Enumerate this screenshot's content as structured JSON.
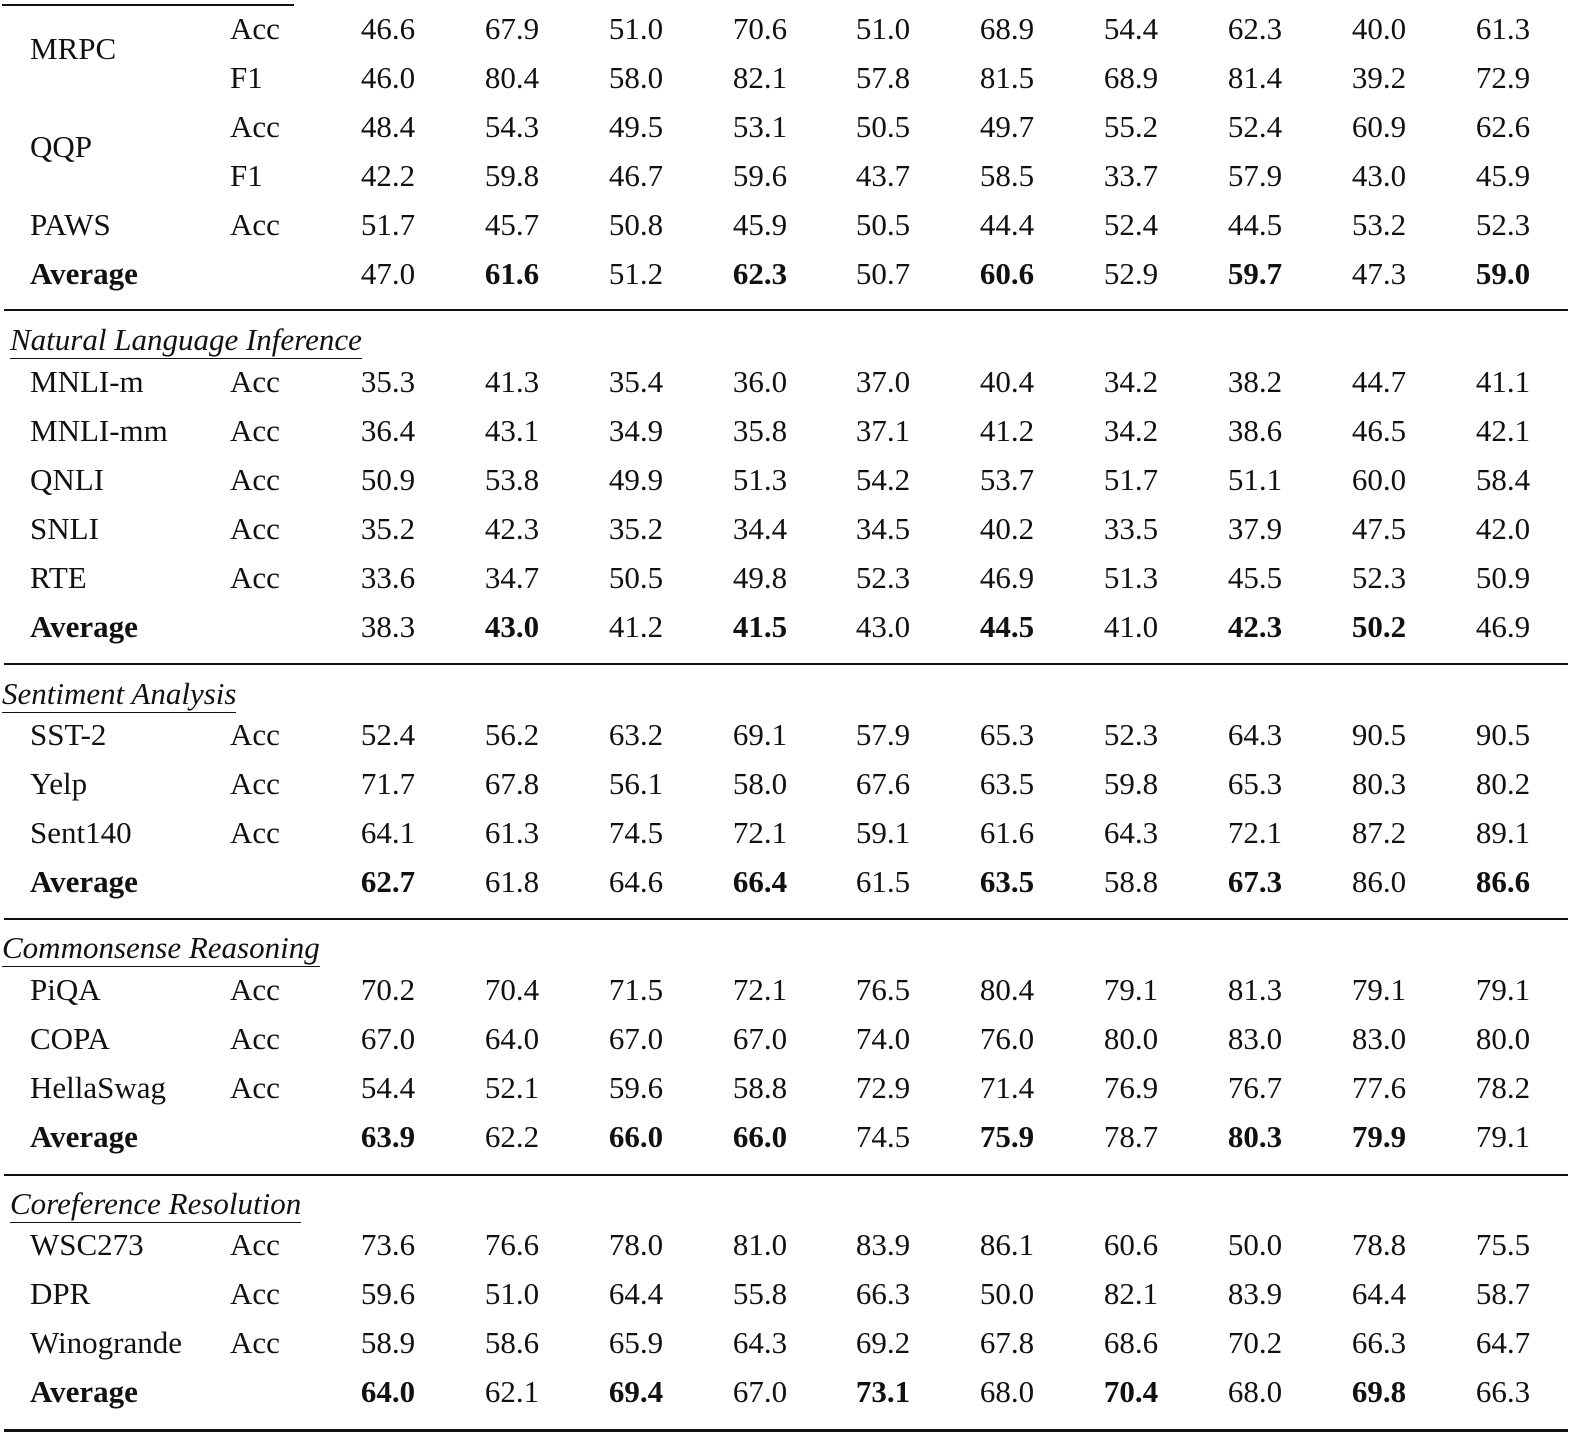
{
  "table": {
    "columns_count": 10,
    "sections": [
      {
        "title": "",
        "title_visible": false,
        "rows": [
          {
            "dataset": "MRPC",
            "metric": "Acc",
            "values": [
              "46.6",
              "67.9",
              "51.0",
              "70.6",
              "51.0",
              "68.9",
              "54.4",
              "62.3",
              "40.0",
              "61.3"
            ],
            "bold": []
          },
          {
            "dataset": "",
            "metric": "F1",
            "values": [
              "46.0",
              "80.4",
              "58.0",
              "82.1",
              "57.8",
              "81.5",
              "68.9",
              "81.4",
              "39.2",
              "72.9"
            ],
            "bold": []
          },
          {
            "dataset": "QQP",
            "metric": "Acc",
            "values": [
              "48.4",
              "54.3",
              "49.5",
              "53.1",
              "50.5",
              "49.7",
              "55.2",
              "52.4",
              "60.9",
              "62.6"
            ],
            "bold": []
          },
          {
            "dataset": "",
            "metric": "F1",
            "values": [
              "42.2",
              "59.8",
              "46.7",
              "59.6",
              "43.7",
              "58.5",
              "33.7",
              "57.9",
              "43.0",
              "45.9"
            ],
            "bold": []
          },
          {
            "dataset": "PAWS",
            "metric": "Acc",
            "values": [
              "51.7",
              "45.7",
              "50.8",
              "45.9",
              "50.5",
              "44.4",
              "52.4",
              "44.5",
              "53.2",
              "52.3"
            ],
            "bold": []
          },
          {
            "dataset": "Average",
            "metric": "",
            "values": [
              "47.0",
              "61.6",
              "51.2",
              "62.3",
              "50.7",
              "60.6",
              "52.9",
              "59.7",
              "47.3",
              "59.0"
            ],
            "bold": [
              1,
              3,
              5,
              7,
              9
            ]
          }
        ]
      },
      {
        "title": "Natural Language Inference",
        "rows": [
          {
            "dataset": "MNLI-m",
            "metric": "Acc",
            "values": [
              "35.3",
              "41.3",
              "35.4",
              "36.0",
              "37.0",
              "40.4",
              "34.2",
              "38.2",
              "44.7",
              "41.1"
            ],
            "bold": []
          },
          {
            "dataset": "MNLI-mm",
            "metric": "Acc",
            "values": [
              "36.4",
              "43.1",
              "34.9",
              "35.8",
              "37.1",
              "41.2",
              "34.2",
              "38.6",
              "46.5",
              "42.1"
            ],
            "bold": []
          },
          {
            "dataset": "QNLI",
            "metric": "Acc",
            "values": [
              "50.9",
              "53.8",
              "49.9",
              "51.3",
              "54.2",
              "53.7",
              "51.7",
              "51.1",
              "60.0",
              "58.4"
            ],
            "bold": []
          },
          {
            "dataset": "SNLI",
            "metric": "Acc",
            "values": [
              "35.2",
              "42.3",
              "35.2",
              "34.4",
              "34.5",
              "40.2",
              "33.5",
              "37.9",
              "47.5",
              "42.0"
            ],
            "bold": []
          },
          {
            "dataset": "RTE",
            "metric": "Acc",
            "values": [
              "33.6",
              "34.7",
              "50.5",
              "49.8",
              "52.3",
              "46.9",
              "51.3",
              "45.5",
              "52.3",
              "50.9"
            ],
            "bold": []
          },
          {
            "dataset": "Average",
            "metric": "",
            "values": [
              "38.3",
              "43.0",
              "41.2",
              "41.5",
              "43.0",
              "44.5",
              "41.0",
              "42.3",
              "50.2",
              "46.9"
            ],
            "bold": [
              1,
              3,
              5,
              7,
              8
            ]
          }
        ]
      },
      {
        "title": "Sentiment Analysis",
        "rows": [
          {
            "dataset": "SST-2",
            "metric": "Acc",
            "values": [
              "52.4",
              "56.2",
              "63.2",
              "69.1",
              "57.9",
              "65.3",
              "52.3",
              "64.3",
              "90.5",
              "90.5"
            ],
            "bold": []
          },
          {
            "dataset": "Yelp",
            "metric": "Acc",
            "values": [
              "71.7",
              "67.8",
              "56.1",
              "58.0",
              "67.6",
              "63.5",
              "59.8",
              "65.3",
              "80.3",
              "80.2"
            ],
            "bold": []
          },
          {
            "dataset": "Sent140",
            "metric": "Acc",
            "values": [
              "64.1",
              "61.3",
              "74.5",
              "72.1",
              "59.1",
              "61.6",
              "64.3",
              "72.1",
              "87.2",
              "89.1"
            ],
            "bold": []
          },
          {
            "dataset": "Average",
            "metric": "",
            "values": [
              "62.7",
              "61.8",
              "64.6",
              "66.4",
              "61.5",
              "63.5",
              "58.8",
              "67.3",
              "86.0",
              "86.6"
            ],
            "bold": [
              0,
              3,
              5,
              7,
              9
            ]
          }
        ]
      },
      {
        "title": "Commonsense Reasoning",
        "rows": [
          {
            "dataset": "PiQA",
            "metric": "Acc",
            "values": [
              "70.2",
              "70.4",
              "71.5",
              "72.1",
              "76.5",
              "80.4",
              "79.1",
              "81.3",
              "79.1",
              "79.1"
            ],
            "bold": []
          },
          {
            "dataset": "COPA",
            "metric": "Acc",
            "values": [
              "67.0",
              "64.0",
              "67.0",
              "67.0",
              "74.0",
              "76.0",
              "80.0",
              "83.0",
              "83.0",
              "80.0"
            ],
            "bold": []
          },
          {
            "dataset": "HellaSwag",
            "metric": "Acc",
            "values": [
              "54.4",
              "52.1",
              "59.6",
              "58.8",
              "72.9",
              "71.4",
              "76.9",
              "76.7",
              "77.6",
              "78.2"
            ],
            "bold": []
          },
          {
            "dataset": "Average",
            "metric": "",
            "values": [
              "63.9",
              "62.2",
              "66.0",
              "66.0",
              "74.5",
              "75.9",
              "78.7",
              "80.3",
              "79.9",
              "79.1"
            ],
            "bold": [
              0,
              2,
              3,
              5,
              7,
              8
            ]
          }
        ]
      },
      {
        "title": "Coreference Resolution",
        "rows": [
          {
            "dataset": "WSC273",
            "metric": "Acc",
            "values": [
              "73.6",
              "76.6",
              "78.0",
              "81.0",
              "83.9",
              "86.1",
              "60.6",
              "50.0",
              "78.8",
              "75.5"
            ],
            "bold": []
          },
          {
            "dataset": "DPR",
            "metric": "Acc",
            "values": [
              "59.6",
              "51.0",
              "64.4",
              "55.8",
              "66.3",
              "50.0",
              "82.1",
              "83.9",
              "64.4",
              "58.7"
            ],
            "bold": []
          },
          {
            "dataset": "Winogrande",
            "metric": "Acc",
            "values": [
              "58.9",
              "58.6",
              "65.9",
              "64.3",
              "69.2",
              "67.8",
              "68.6",
              "70.2",
              "66.3",
              "64.7"
            ],
            "bold": []
          },
          {
            "dataset": "Average",
            "metric": "",
            "values": [
              "64.0",
              "62.1",
              "69.4",
              "67.0",
              "73.1",
              "68.0",
              "70.4",
              "68.0",
              "69.8",
              "66.3"
            ],
            "bold": [
              0,
              2,
              4,
              6,
              8
            ]
          }
        ]
      }
    ]
  }
}
